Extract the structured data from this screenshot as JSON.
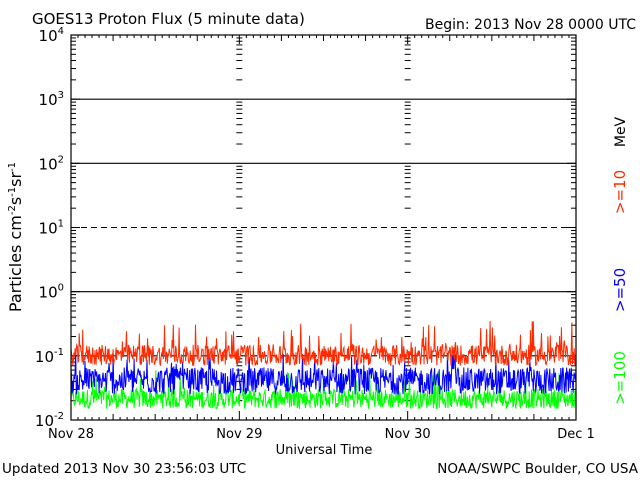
{
  "header": {
    "title": "GOES13 Proton Flux (5 minute data)",
    "begin": "Begin: 2013 Nov 28 0000 UTC"
  },
  "footer": {
    "updated": "Updated 2013 Nov 30 23:56:03 UTC",
    "credit": "NOAA/SWPC Boulder, CO USA"
  },
  "colors": {
    "ge10": "#ff2a00",
    "ge50": "#0000ff",
    "ge100": "#00ff00",
    "axis": "#000000"
  },
  "chart_data": {
    "type": "line",
    "title": "GOES13 Proton Flux (5 minute data)",
    "xlabel": "Universal Time",
    "ylabel": "Particles cm-2s-1sr-1",
    "yscale": "log",
    "ylim": [
      0.01,
      10000
    ],
    "xlim": [
      "2013-11-28 00:00",
      "2013-12-01 00:00"
    ],
    "x_ticks": [
      "Nov 28",
      "Nov 29",
      "Nov 30",
      "Dec 1"
    ],
    "y_tick_exponents": [
      -2,
      -1,
      0,
      1,
      2,
      3,
      4
    ],
    "unit_label": "MeV",
    "reference_lines": [
      {
        "value": 0.1,
        "style": "dashed"
      },
      {
        "value": 1,
        "style": "solid"
      },
      {
        "value": 10,
        "style": "dashed"
      },
      {
        "value": 100,
        "style": "solid"
      },
      {
        "value": 1000,
        "style": "solid"
      }
    ],
    "series": [
      {
        "name": ">=10",
        "color": "#ff2a00",
        "typical_value": 0.12,
        "min_value": 0.07,
        "max_value": 0.35
      },
      {
        "name": ">=50",
        "color": "#0000ff",
        "typical_value": 0.05,
        "min_value": 0.025,
        "max_value": 0.12
      },
      {
        "name": ">=100",
        "color": "#00ff00",
        "typical_value": 0.025,
        "min_value": 0.015,
        "max_value": 0.06
      }
    ]
  }
}
